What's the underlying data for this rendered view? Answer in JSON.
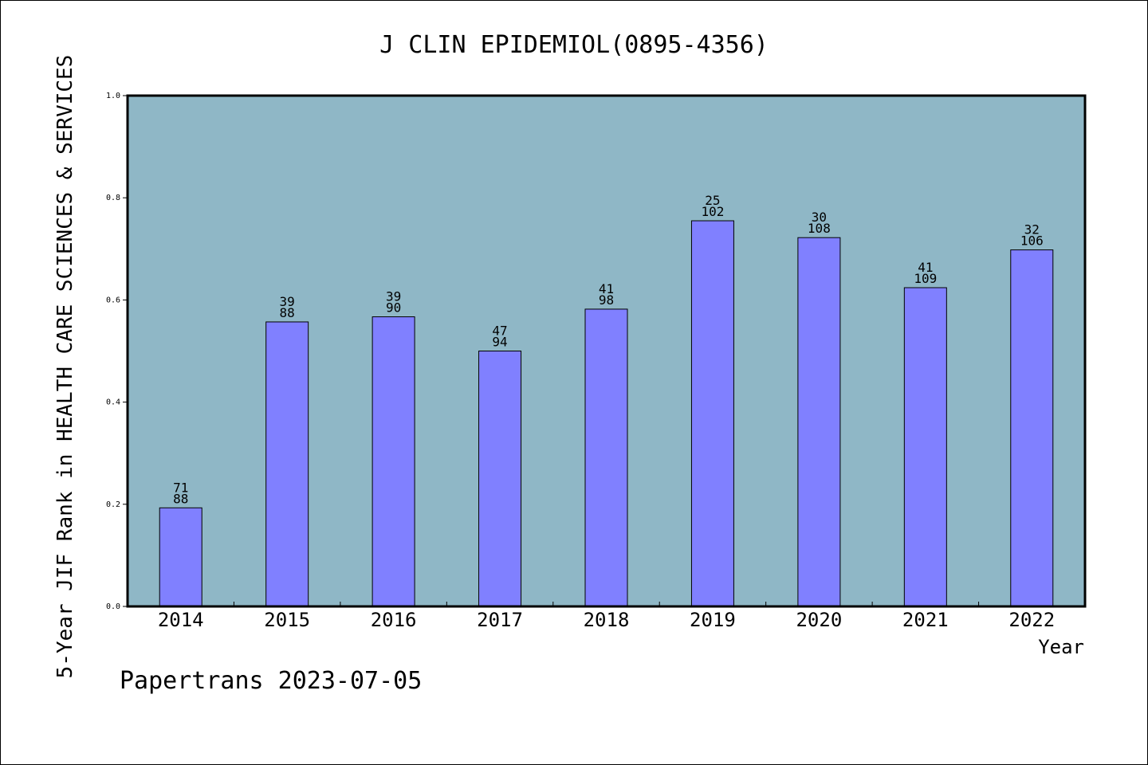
{
  "chart_data": {
    "type": "bar",
    "title": "J CLIN EPIDEMIOL(0895-4356)",
    "ylabel": "5-Year JIF Rank in HEALTH CARE SCIENCES & SERVICES",
    "xlabel": "Year",
    "ylim": [
      0,
      1.0
    ],
    "yticks": [
      "0.0",
      "0.2",
      "0.4",
      "0.6",
      "0.8",
      "1.0"
    ],
    "grid": false,
    "categories": [
      "2014",
      "2015",
      "2016",
      "2017",
      "2018",
      "2019",
      "2020",
      "2021",
      "2022"
    ],
    "values": [
      0.193,
      0.557,
      0.567,
      0.5,
      0.582,
      0.755,
      0.722,
      0.624,
      0.698
    ],
    "rank": [
      "71",
      "39",
      "39",
      "47",
      "41",
      "25",
      "30",
      "41",
      "32"
    ],
    "total": [
      "88",
      "88",
      "90",
      "94",
      "98",
      "102",
      "108",
      "109",
      "106"
    ],
    "colors": {
      "plot_background": "#8fb7c6",
      "bar_fill": "#8080ff",
      "bar_stroke": "#000000"
    }
  },
  "footer": "Papertrans 2023-07-05"
}
